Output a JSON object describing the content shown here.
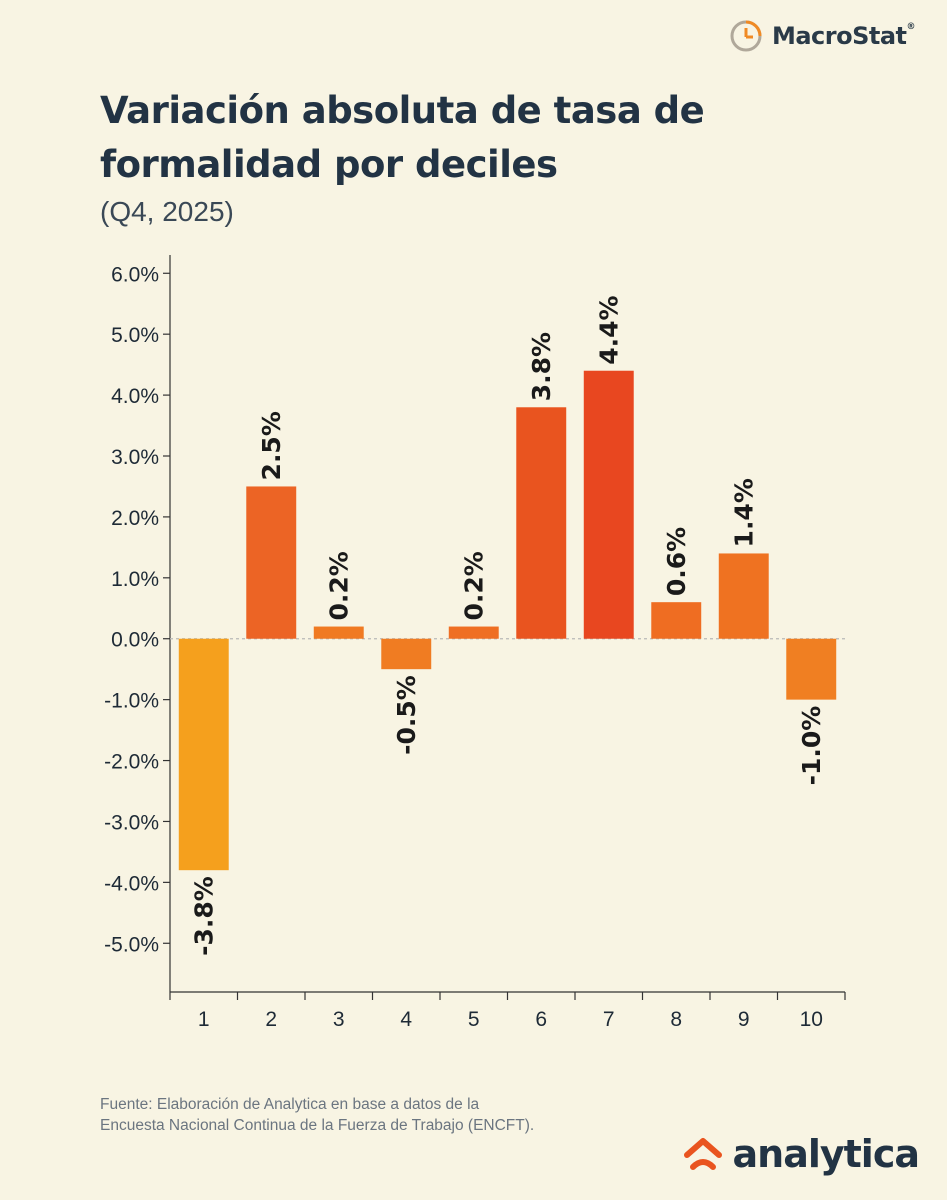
{
  "brand_top": {
    "name": "MacroStat",
    "trademark": "®"
  },
  "title": "Variación absoluta de tasa de formalidad por deciles",
  "subtitle": "(Q4, 2025)",
  "chart_data": {
    "type": "bar",
    "categories": [
      "1",
      "2",
      "3",
      "4",
      "5",
      "6",
      "7",
      "8",
      "9",
      "10"
    ],
    "values": [
      -3.8,
      2.5,
      0.2,
      -0.5,
      0.2,
      3.8,
      4.4,
      0.6,
      1.4,
      -1.0
    ],
    "value_labels": [
      "-3.8%",
      "2.5%",
      "0.2%",
      "-0.5%",
      "0.2%",
      "3.8%",
      "4.4%",
      "0.6%",
      "1.4%",
      "-1.0%"
    ],
    "yticks": [
      6,
      5,
      4,
      3,
      2,
      1,
      0,
      -1,
      -2,
      -3,
      -4,
      -5
    ],
    "ytick_labels": [
      "6.0%",
      "5.0%",
      "4.0%",
      "3.0%",
      "2.0%",
      "1.0%",
      "0.0%",
      "-1.0%",
      "-2.0%",
      "-3.0%",
      "-4.0%",
      "-5.0%"
    ],
    "ylim": [
      -5.8,
      6.3
    ],
    "title": "",
    "xlabel": "",
    "ylabel": "",
    "colors": [
      "#f5a01d",
      "#ec6425",
      "#f07a22",
      "#f07c22",
      "#ef6f23",
      "#e9541f",
      "#e84720",
      "#ef6d22",
      "#ef7221",
      "#f07f22"
    ],
    "zero_line_color": "#b8b8b8",
    "grid": false
  },
  "footer": {
    "line1": "Fuente: Elaboración de Analytica en base a datos de la",
    "line2": "Encuesta Nacional Continua de la Fuerza de Trabajo (ENCFT)."
  },
  "brand_bottom": {
    "name": "analytica"
  },
  "colors": {
    "background": "#f8f4e3",
    "text": "#223344",
    "accent": "#e9541f"
  }
}
